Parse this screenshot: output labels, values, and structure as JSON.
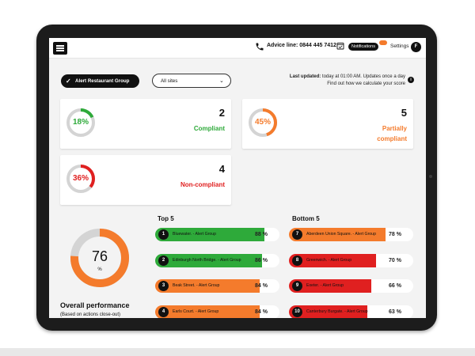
{
  "topbar": {
    "advice": "Advice line: 0844 445 7412",
    "notifications_label": "Notifications",
    "notifications_count": "",
    "settings_label": "Settings",
    "avatar_initial": "F"
  },
  "filters": {
    "group_label": "Alert Restaurant Group",
    "site_select_value": "All sites"
  },
  "update_info": {
    "last_updated_label": "Last updated:",
    "last_updated_text": "today at 01:00 AM. Updates once a day",
    "score_link": "Find out how we calculate your score"
  },
  "summary_cards": [
    {
      "percent": "18%",
      "count": "2",
      "label": "Compliant",
      "color": "#2eaa3a",
      "fraction": 0.18
    },
    {
      "percent": "45%",
      "count": "5",
      "label_line1": "Partially",
      "label_line2": "compliant",
      "color": "#f47b2c",
      "fraction": 0.45
    },
    {
      "percent": "36%",
      "count": "4",
      "label": "Non-compliant",
      "color": "#e02020",
      "fraction": 0.36
    }
  ],
  "overall": {
    "value": "76",
    "unit": "%",
    "fraction": 0.76,
    "color": "#f47b2c",
    "title": "Overall performance",
    "subtitle": "(Based on actions close-out)"
  },
  "top5": {
    "title": "Top 5",
    "rows": [
      {
        "rank": "1",
        "name": "Bluewater. - Alert Group",
        "percent": "88 %",
        "fraction": 0.88,
        "color": "#2eaa3a"
      },
      {
        "rank": "2",
        "name": "Edinburgh North Bridge. - Alert Group",
        "percent": "86 %",
        "fraction": 0.86,
        "color": "#2eaa3a"
      },
      {
        "rank": "3",
        "name": "Beak Street. - Alert Group",
        "percent": "84 %",
        "fraction": 0.84,
        "color": "#f47b2c"
      },
      {
        "rank": "4",
        "name": "Earls Court. - Alert Group",
        "percent": "84 %",
        "fraction": 0.84,
        "color": "#f47b2c"
      }
    ]
  },
  "bottom5": {
    "title": "Bottom 5",
    "rows": [
      {
        "rank": "7",
        "name": "Aberdeen Union Square. - Alert Group",
        "percent": "78 %",
        "fraction": 0.78,
        "color": "#f47b2c"
      },
      {
        "rank": "8",
        "name": "Greenwich. - Alert Group",
        "percent": "70 %",
        "fraction": 0.7,
        "color": "#e02020"
      },
      {
        "rank": "9",
        "name": "Exeter. - Alert Group",
        "percent": "66 %",
        "fraction": 0.66,
        "color": "#e02020"
      },
      {
        "rank": "10",
        "name": "Canterbury Burgate. - Alert Group",
        "percent": "63 %",
        "fraction": 0.63,
        "color": "#e02020"
      }
    ]
  }
}
